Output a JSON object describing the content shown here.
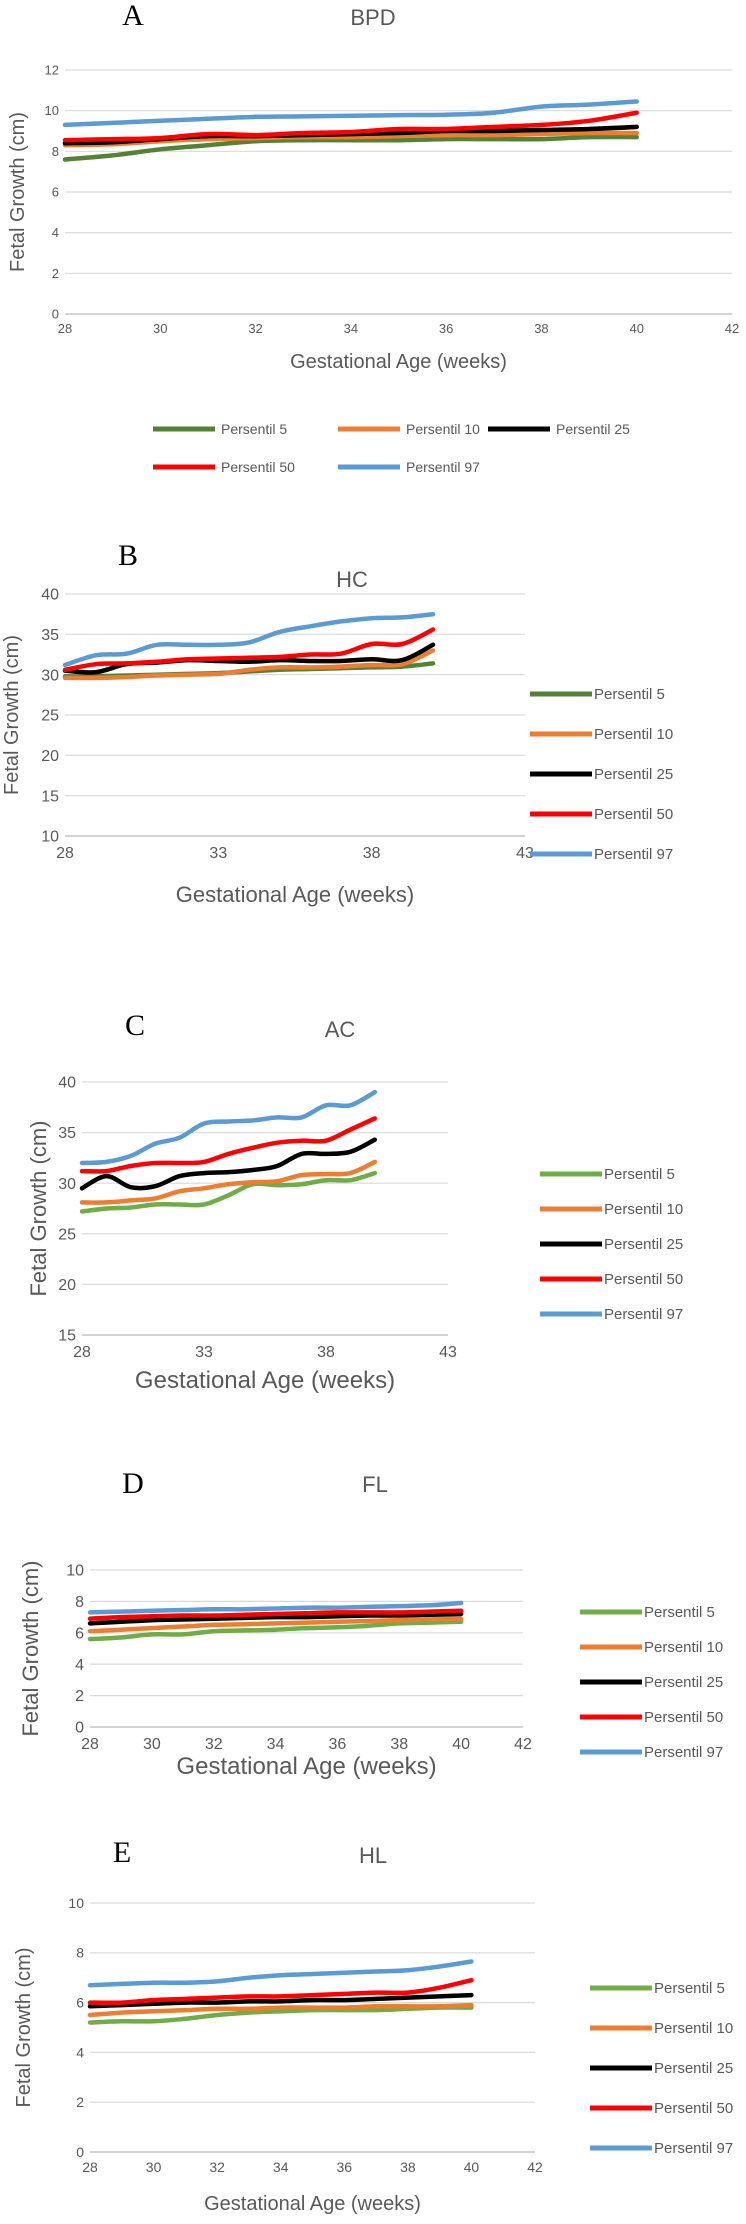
{
  "figure": {
    "legend_labels": [
      "Persentil 5",
      "Persentil 10",
      "Persentil 25",
      "Persentil 50",
      "Persentil 97"
    ]
  },
  "chart_data": [
    {
      "panel": "A",
      "type": "line",
      "title": "BPD",
      "xlabel": "Gestational Age (weeks)",
      "ylabel": "Fetal Growth (cm)",
      "xlim": [
        28,
        42
      ],
      "ylim": [
        0,
        12
      ],
      "xticks": [
        28,
        30,
        32,
        34,
        36,
        38,
        40,
        42
      ],
      "yticks": [
        0,
        2,
        4,
        6,
        8,
        10,
        12
      ],
      "grid": "horizontal",
      "legend_position": "bottom",
      "series": [
        {
          "name": "Persentil 5",
          "color": "#548235",
          "x": [
            28,
            29,
            30,
            31,
            32,
            33,
            34,
            35,
            36,
            37,
            38,
            39,
            40
          ],
          "y": [
            7.6,
            7.8,
            8.1,
            8.3,
            8.5,
            8.55,
            8.55,
            8.55,
            8.6,
            8.6,
            8.6,
            8.7,
            8.7
          ]
        },
        {
          "name": "Persentil 10",
          "color": "#ED7D31",
          "x": [
            28,
            29,
            30,
            31,
            32,
            33,
            34,
            35,
            36,
            37,
            38,
            39,
            40
          ],
          "y": [
            8.3,
            8.35,
            8.5,
            8.6,
            8.65,
            8.7,
            8.7,
            8.75,
            8.8,
            8.8,
            8.85,
            8.9,
            8.9
          ]
        },
        {
          "name": "Persentil 25",
          "color": "#000000",
          "x": [
            28,
            29,
            30,
            31,
            32,
            33,
            34,
            35,
            36,
            37,
            38,
            39,
            40
          ],
          "y": [
            8.4,
            8.45,
            8.6,
            8.75,
            8.75,
            8.8,
            8.85,
            8.9,
            9.0,
            9.0,
            9.05,
            9.1,
            9.2
          ]
        },
        {
          "name": "Persentil 50",
          "color": "#FF0000",
          "x": [
            28,
            29,
            30,
            31,
            32,
            33,
            34,
            35,
            36,
            37,
            38,
            39,
            40
          ],
          "y": [
            8.55,
            8.6,
            8.65,
            8.85,
            8.8,
            8.9,
            8.95,
            9.1,
            9.1,
            9.2,
            9.3,
            9.5,
            9.9
          ]
        },
        {
          "name": "Persentil 97",
          "color": "#5B9BD5",
          "x": [
            28,
            29,
            30,
            31,
            32,
            33,
            34,
            35,
            36,
            37,
            38,
            39,
            40
          ],
          "y": [
            9.3,
            9.4,
            9.5,
            9.6,
            9.7,
            9.72,
            9.75,
            9.78,
            9.8,
            9.9,
            10.2,
            10.3,
            10.45
          ]
        }
      ]
    },
    {
      "panel": "B",
      "type": "line",
      "title": "HC",
      "xlabel": "Gestational Age (weeks)",
      "ylabel": "Fetal Growth (cm)",
      "xlim": [
        28,
        43
      ],
      "ylim": [
        10,
        40
      ],
      "xticks": [
        28,
        33,
        38,
        43
      ],
      "yticks": [
        10,
        15,
        20,
        25,
        30,
        35,
        40
      ],
      "grid": "horizontal",
      "legend_position": "right",
      "series": [
        {
          "name": "Persentil 5",
          "color": "#548235",
          "x": [
            28,
            29,
            30,
            31,
            32,
            33,
            34,
            35,
            36,
            37,
            38,
            39,
            40
          ],
          "y": [
            29.8,
            29.8,
            29.9,
            30.0,
            30.1,
            30.2,
            30.4,
            30.6,
            30.7,
            30.8,
            30.9,
            31.0,
            31.4
          ]
        },
        {
          "name": "Persentil 10",
          "color": "#ED7D31",
          "x": [
            28,
            29,
            30,
            31,
            32,
            33,
            34,
            35,
            36,
            37,
            38,
            39,
            40
          ],
          "y": [
            29.6,
            29.6,
            29.7,
            29.9,
            30.0,
            30.1,
            30.6,
            30.9,
            30.9,
            31.0,
            31.2,
            31.3,
            33.0
          ]
        },
        {
          "name": "Persentil 25",
          "color": "#000000",
          "x": [
            28,
            29,
            30,
            31,
            32,
            33,
            34,
            35,
            36,
            37,
            38,
            39,
            40
          ],
          "y": [
            30.5,
            30.3,
            31.3,
            31.5,
            31.8,
            31.7,
            31.6,
            31.8,
            31.7,
            31.7,
            31.9,
            31.8,
            33.7
          ]
        },
        {
          "name": "Persentil 50",
          "color": "#FF0000",
          "x": [
            28,
            29,
            30,
            31,
            32,
            33,
            34,
            35,
            36,
            37,
            38,
            39,
            40
          ],
          "y": [
            30.6,
            31.3,
            31.4,
            31.6,
            31.9,
            32.0,
            32.1,
            32.2,
            32.5,
            32.6,
            33.8,
            33.8,
            35.6
          ]
        },
        {
          "name": "Persentil 97",
          "color": "#5B9BD5",
          "x": [
            28,
            29,
            30,
            31,
            32,
            33,
            34,
            35,
            36,
            37,
            38,
            39,
            40
          ],
          "y": [
            31.2,
            32.4,
            32.6,
            33.7,
            33.7,
            33.7,
            34.0,
            35.3,
            36.0,
            36.6,
            37.0,
            37.1,
            37.5
          ]
        }
      ]
    },
    {
      "panel": "C",
      "type": "line",
      "title": "AC",
      "xlabel": "Gestational Age (weeks)",
      "ylabel": "Fetal Growth (cm)",
      "xlim": [
        28,
        43
      ],
      "ylim": [
        15,
        40
      ],
      "xticks": [
        28,
        33,
        38,
        43
      ],
      "yticks": [
        15,
        20,
        25,
        30,
        35,
        40
      ],
      "grid": "horizontal",
      "legend_position": "right",
      "series": [
        {
          "name": "Persentil 5",
          "color": "#70AD47",
          "x": [
            28,
            29,
            30,
            31,
            32,
            33,
            34,
            35,
            36,
            37,
            38,
            39,
            40
          ],
          "y": [
            27.2,
            27.5,
            27.6,
            27.9,
            27.9,
            27.9,
            28.8,
            29.9,
            29.8,
            29.9,
            30.3,
            30.3,
            31.0
          ]
        },
        {
          "name": "Persentil 10",
          "color": "#ED7D31",
          "x": [
            28,
            29,
            30,
            31,
            32,
            33,
            34,
            35,
            36,
            37,
            38,
            39,
            40
          ],
          "y": [
            28.1,
            28.1,
            28.3,
            28.5,
            29.2,
            29.5,
            29.9,
            30.1,
            30.2,
            30.8,
            30.9,
            31.0,
            32.1
          ]
        },
        {
          "name": "Persentil 25",
          "color": "#000000",
          "x": [
            28,
            29,
            30,
            31,
            32,
            33,
            34,
            35,
            36,
            37,
            38,
            39,
            40
          ],
          "y": [
            29.5,
            30.7,
            29.6,
            29.7,
            30.7,
            31.0,
            31.1,
            31.3,
            31.7,
            32.9,
            32.9,
            33.1,
            34.3
          ]
        },
        {
          "name": "Persentil 50",
          "color": "#FF0000",
          "x": [
            28,
            29,
            30,
            31,
            32,
            33,
            34,
            35,
            36,
            37,
            38,
            39,
            40
          ],
          "y": [
            31.2,
            31.2,
            31.7,
            32.0,
            32.0,
            32.1,
            32.9,
            33.5,
            34.0,
            34.2,
            34.2,
            35.3,
            36.4
          ]
        },
        {
          "name": "Persentil 97",
          "color": "#5B9BD5",
          "x": [
            28,
            29,
            30,
            31,
            32,
            33,
            34,
            35,
            36,
            37,
            38,
            39,
            40
          ],
          "y": [
            32.0,
            32.1,
            32.7,
            33.9,
            34.5,
            35.9,
            36.1,
            36.2,
            36.5,
            36.5,
            37.7,
            37.7,
            39.0
          ]
        }
      ]
    },
    {
      "panel": "D",
      "type": "line",
      "title": "FL",
      "xlabel": "Gestational Age (weeks)",
      "ylabel": "Fetal Growth (cm)",
      "xlim": [
        28,
        42
      ],
      "ylim": [
        0,
        10
      ],
      "xticks": [
        28,
        30,
        32,
        34,
        36,
        38,
        40,
        42
      ],
      "yticks": [
        0,
        2,
        4,
        6,
        8,
        10
      ],
      "grid": "horizontal",
      "legend_position": "right",
      "series": [
        {
          "name": "Persentil 5",
          "color": "#70AD47",
          "x": [
            28,
            29,
            30,
            31,
            32,
            33,
            34,
            35,
            36,
            37,
            38,
            39,
            40
          ],
          "y": [
            5.6,
            5.7,
            5.9,
            5.9,
            6.1,
            6.15,
            6.2,
            6.3,
            6.35,
            6.45,
            6.6,
            6.65,
            6.7
          ]
        },
        {
          "name": "Persentil 10",
          "color": "#ED7D31",
          "x": [
            28,
            29,
            30,
            31,
            32,
            33,
            34,
            35,
            36,
            37,
            38,
            39,
            40
          ],
          "y": [
            6.1,
            6.2,
            6.3,
            6.4,
            6.5,
            6.55,
            6.6,
            6.65,
            6.7,
            6.75,
            6.8,
            6.85,
            6.9
          ]
        },
        {
          "name": "Persentil 25",
          "color": "#000000",
          "x": [
            28,
            29,
            30,
            31,
            32,
            33,
            34,
            35,
            36,
            37,
            38,
            39,
            40
          ],
          "y": [
            6.6,
            6.7,
            6.8,
            6.85,
            6.9,
            6.95,
            7.0,
            7.0,
            7.05,
            7.1,
            7.1,
            7.15,
            7.2
          ]
        },
        {
          "name": "Persentil 50",
          "color": "#FF0000",
          "x": [
            28,
            29,
            30,
            31,
            32,
            33,
            34,
            35,
            36,
            37,
            38,
            39,
            40
          ],
          "y": [
            6.9,
            7.0,
            7.05,
            7.1,
            7.1,
            7.15,
            7.2,
            7.25,
            7.3,
            7.3,
            7.3,
            7.35,
            7.4
          ]
        },
        {
          "name": "Persentil 97",
          "color": "#5B9BD5",
          "x": [
            28,
            29,
            30,
            31,
            32,
            33,
            34,
            35,
            36,
            37,
            38,
            39,
            40
          ],
          "y": [
            7.3,
            7.35,
            7.4,
            7.45,
            7.5,
            7.5,
            7.55,
            7.6,
            7.6,
            7.65,
            7.7,
            7.75,
            7.9
          ]
        }
      ]
    },
    {
      "panel": "E",
      "type": "line",
      "title": "HL",
      "xlabel": "Gestational Age (weeks)",
      "ylabel": "Fetal Growth (cm)",
      "xlim": [
        28,
        42
      ],
      "ylim": [
        0,
        10
      ],
      "xticks": [
        28,
        30,
        32,
        34,
        36,
        38,
        40,
        42
      ],
      "yticks": [
        0,
        2,
        4,
        6,
        8,
        10
      ],
      "grid": "horizontal",
      "legend_position": "right",
      "series": [
        {
          "name": "Persentil 5",
          "color": "#70AD47",
          "x": [
            28,
            29,
            30,
            31,
            32,
            33,
            34,
            35,
            36,
            37,
            38,
            39,
            40
          ],
          "y": [
            5.2,
            5.25,
            5.25,
            5.35,
            5.5,
            5.6,
            5.65,
            5.7,
            5.7,
            5.7,
            5.75,
            5.8,
            5.8
          ]
        },
        {
          "name": "Persentil 10",
          "color": "#ED7D31",
          "x": [
            28,
            29,
            30,
            31,
            32,
            33,
            34,
            35,
            36,
            37,
            38,
            39,
            40
          ],
          "y": [
            5.5,
            5.6,
            5.65,
            5.7,
            5.75,
            5.75,
            5.8,
            5.8,
            5.8,
            5.85,
            5.85,
            5.85,
            5.9
          ]
        },
        {
          "name": "Persentil 25",
          "color": "#000000",
          "x": [
            28,
            29,
            30,
            31,
            32,
            33,
            34,
            35,
            36,
            37,
            38,
            39,
            40
          ],
          "y": [
            5.85,
            5.9,
            5.95,
            6.0,
            6.0,
            6.05,
            6.05,
            6.1,
            6.1,
            6.15,
            6.2,
            6.25,
            6.3
          ]
        },
        {
          "name": "Persentil 50",
          "color": "#FF0000",
          "x": [
            28,
            29,
            30,
            31,
            32,
            33,
            34,
            35,
            36,
            37,
            38,
            39,
            40
          ],
          "y": [
            6.0,
            6.0,
            6.1,
            6.15,
            6.2,
            6.25,
            6.25,
            6.3,
            6.35,
            6.4,
            6.4,
            6.6,
            6.9
          ]
        },
        {
          "name": "Persentil 97",
          "color": "#5B9BD5",
          "x": [
            28,
            29,
            30,
            31,
            32,
            33,
            34,
            35,
            36,
            37,
            38,
            39,
            40
          ],
          "y": [
            6.7,
            6.75,
            6.8,
            6.8,
            6.85,
            7.0,
            7.1,
            7.15,
            7.2,
            7.25,
            7.3,
            7.45,
            7.65
          ]
        }
      ]
    }
  ]
}
